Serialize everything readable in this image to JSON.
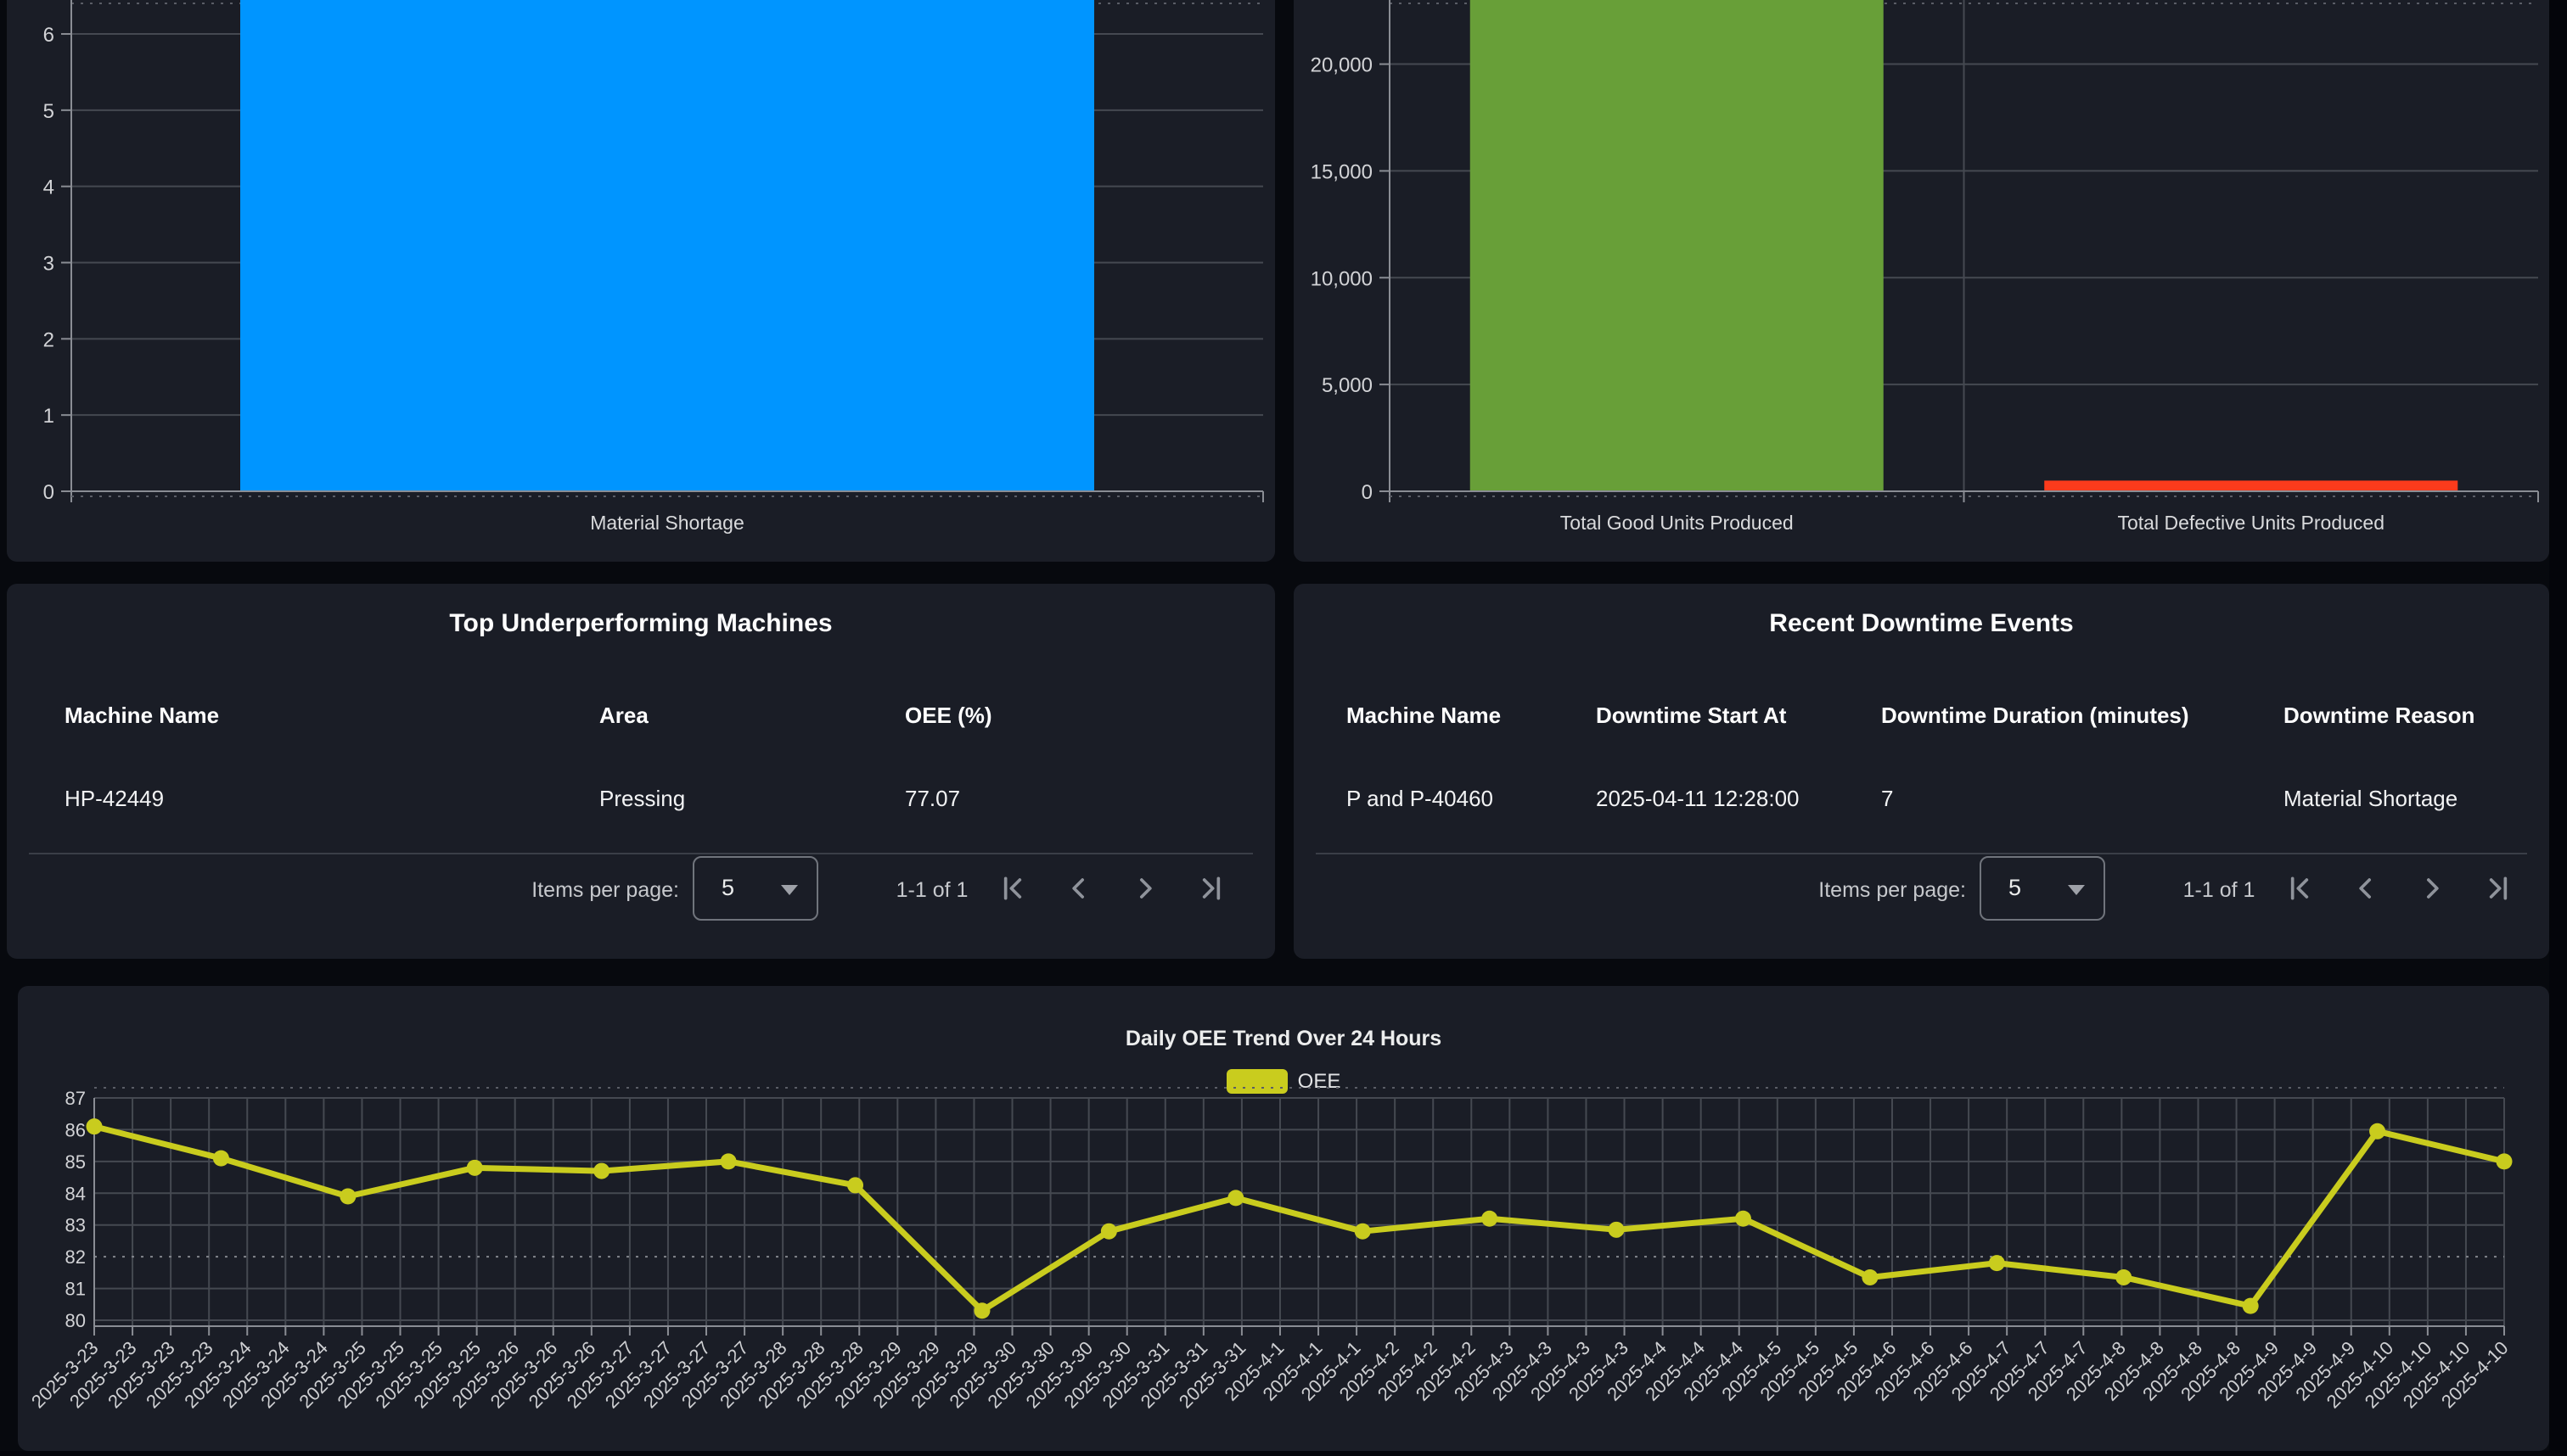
{
  "colors": {
    "page_bg": "#07090e",
    "panel_bg": "#1a1d26",
    "bar_blue": "#0095ff",
    "bar_green": "#689f38",
    "bar_red": "#fb3b1c",
    "line_yellow": "#c9cc1e",
    "grid": "#454951",
    "axis": "#8a8d94",
    "text_light": "#d2d3d6"
  },
  "tables": [
    {
      "title": "Top Underperforming Machines",
      "columns": [
        "Machine Name",
        "Area",
        "OEE (%)"
      ],
      "rows": [
        [
          "HP-42449",
          "Pressing",
          "77.07"
        ]
      ],
      "paginator": {
        "items_per_page_label": "Items per page:",
        "page_size": "5",
        "range_label": "1-1 of 1",
        "icons": [
          "first-page",
          "previous-page",
          "next-page",
          "last-page"
        ]
      }
    },
    {
      "title": "Recent Downtime Events",
      "columns": [
        "Machine Name",
        "Downtime Start At",
        "Downtime Duration (minutes)",
        "Downtime Reason"
      ],
      "rows": [
        [
          "P and P-40460",
          "2025-04-11 12:28:00",
          "7",
          "Material Shortage"
        ]
      ],
      "paginator": {
        "items_per_page_label": "Items per page:",
        "page_size": "5",
        "range_label": "1-1 of 1",
        "icons": [
          "first-page",
          "previous-page",
          "next-page",
          "last-page"
        ]
      }
    }
  ],
  "chart_data": [
    {
      "id": "downtime-by-reason",
      "type": "bar",
      "categories": [
        "Material Shortage"
      ],
      "values": [
        6.5
      ],
      "clipped_at_top": true,
      "y_ticks": [
        "0",
        "1",
        "2",
        "3",
        "4",
        "5",
        "6"
      ],
      "ylim": [
        0,
        6.45
      ],
      "bar_color": "#0095ff",
      "grid": true
    },
    {
      "id": "units-produced",
      "type": "bar",
      "categories": [
        "Total Good Units Produced",
        "Total Defective Units Produced"
      ],
      "values": [
        23000,
        500
      ],
      "clipped_at_top": [
        true,
        false
      ],
      "y_ticks": [
        "0",
        "5,000",
        "10,000",
        "15,000",
        "20,000"
      ],
      "y_tick_values": [
        0,
        5000,
        10000,
        15000,
        20000
      ],
      "ylim": [
        0,
        23000
      ],
      "bar_colors": [
        "#689f38",
        "#fb3b1c"
      ],
      "grid": true
    },
    {
      "id": "daily-oee-trend",
      "type": "line",
      "title": "Daily OEE Trend Over 24 Hours",
      "legend": [
        "OEE"
      ],
      "legend_position": "top-center",
      "line_color": "#c9cc1e",
      "ylim": [
        80,
        87
      ],
      "y_ticks": [
        "80",
        "81",
        "82",
        "83",
        "84",
        "85",
        "86",
        "87"
      ],
      "dashed_gridline_value": 82,
      "grid": true,
      "x_labels": [
        "2025-3-23",
        "2025-3-23",
        "2025-3-23",
        "2025-3-23",
        "2025-3-24",
        "2025-3-24",
        "2025-3-24",
        "2025-3-25",
        "2025-3-25",
        "2025-3-25",
        "2025-3-25",
        "2025-3-26",
        "2025-3-26",
        "2025-3-26",
        "2025-3-27",
        "2025-3-27",
        "2025-3-27",
        "2025-3-27",
        "2025-3-28",
        "2025-3-28",
        "2025-3-28",
        "2025-3-29",
        "2025-3-29",
        "2025-3-29",
        "2025-3-30",
        "2025-3-30",
        "2025-3-30",
        "2025-3-30",
        "2025-3-31",
        "2025-3-31",
        "2025-3-31",
        "2025-4-1",
        "2025-4-1",
        "2025-4-1",
        "2025-4-2",
        "2025-4-2",
        "2025-4-2",
        "2025-4-3",
        "2025-4-3",
        "2025-4-3",
        "2025-4-3",
        "2025-4-4",
        "2025-4-4",
        "2025-4-4",
        "2025-4-5",
        "2025-4-5",
        "2025-4-5",
        "2025-4-6",
        "2025-4-6",
        "2025-4-6",
        "2025-4-7",
        "2025-4-7",
        "2025-4-7",
        "2025-4-8",
        "2025-4-8",
        "2025-4-8",
        "2025-4-8",
        "2025-4-9",
        "2025-4-9",
        "2025-4-9",
        "2025-4-10",
        "2025-4-10",
        "2025-4-10",
        "2025-4-10"
      ],
      "values": [
        86.1,
        85.1,
        83.9,
        84.8,
        84.7,
        85.0,
        84.25,
        80.3,
        82.8,
        83.85,
        82.8,
        83.2,
        82.85,
        83.2,
        81.35,
        81.8,
        81.35,
        80.45,
        85.95,
        85.0
      ],
      "points_note": "20 points evenly spanning the x-axis from first to last tick"
    }
  ]
}
